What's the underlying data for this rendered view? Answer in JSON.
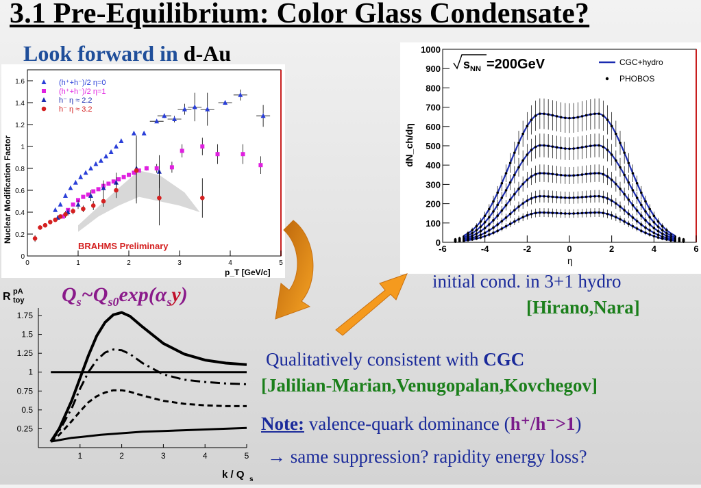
{
  "slide": {
    "title": "3.1 Pre-Equilibrium: Color Glass Condensate?",
    "subtitle_part1": "Look forward in",
    "subtitle_part2": "d-Au",
    "qs_formula": {
      "left": "Q",
      "left_sub": "s",
      "tilde": "~Q",
      "mid_sub": "s0",
      "exp": "exp(",
      "alpha": "α",
      "alpha_sub": "s",
      "y": "y",
      "close": ")"
    },
    "hydro_line1": "initial cond. in 3+1 hydro",
    "hydro_line2": "[Hirano,Nara]",
    "consistent_text": "Qualitatively consistent with",
    "consistent_bold": "CGC",
    "consistent_refs": "[Jalilian-Marian,Venugopalan,Kovchegov]",
    "note_label": "Note:",
    "note_text": "valence-quark dominance (",
    "note_ratio": "h⁺/h⁻>1",
    "note_close": ")",
    "arrow_line": "→ same suppression? rapidity energy loss?",
    "colors": {
      "title": "#000000",
      "blue": "#1a2a9a",
      "green": "#1b7f1b",
      "purple": "#7a1a8a",
      "orange_arrow": "#f59a1e"
    }
  },
  "chart_data": [
    {
      "id": "brahms",
      "type": "scatter",
      "ylabel": "Nuclear Modification Factor",
      "xlabel": "p_T [GeV/c]",
      "annotation": "BRAHMS Preliminary",
      "xlim": [
        0,
        5
      ],
      "ylim": [
        0,
        1.7
      ],
      "xticks": [
        "0",
        "1",
        "2",
        "3",
        "4",
        "5"
      ],
      "yticks": [
        "0",
        "0.2",
        "0.4",
        "0.6",
        "0.8",
        "1",
        "1.2",
        "1.4",
        "1.6"
      ],
      "legend": [
        "(h⁺+h⁻)/2 η=0",
        "(h⁺+h⁻)/2 η=1",
        "h⁻ η ≈ 2.2",
        "h⁻ η ≈ 3.2"
      ],
      "series": [
        {
          "name": "(h⁺+h⁻)/2 η=0",
          "color": "#2a3fd8",
          "marker": "triangle",
          "x": [
            0.55,
            0.65,
            0.75,
            0.85,
            0.95,
            1.05,
            1.15,
            1.25,
            1.35,
            1.45,
            1.55,
            1.65,
            1.75,
            1.85,
            2.1,
            2.3,
            2.55,
            2.7,
            2.9,
            3.1,
            3.3,
            3.55,
            3.9,
            4.2,
            4.65
          ],
          "y": [
            0.42,
            0.47,
            0.55,
            0.62,
            0.67,
            0.72,
            0.76,
            0.8,
            0.84,
            0.87,
            0.91,
            0.95,
            1.0,
            1.05,
            1.12,
            1.12,
            1.23,
            1.28,
            1.25,
            1.34,
            1.36,
            1.34,
            1.4,
            1.47,
            1.28
          ],
          "err": [
            0,
            0,
            0,
            0,
            0,
            0,
            0,
            0,
            0,
            0,
            0,
            0,
            0,
            0,
            0,
            0,
            0,
            0.02,
            0.03,
            0.05,
            0.13,
            0.15,
            0.02,
            0.05,
            0.1
          ]
        },
        {
          "name": "(h⁺+h⁻)/2 η=1",
          "color": "#e020e0",
          "marker": "square",
          "x": [
            0.7,
            0.8,
            0.9,
            1.0,
            1.1,
            1.2,
            1.3,
            1.4,
            1.5,
            1.6,
            1.7,
            1.8,
            1.9,
            2.0,
            2.1,
            2.2,
            2.35,
            2.55,
            2.85,
            3.05,
            3.45,
            3.75,
            4.25,
            4.6
          ],
          "y": [
            0.36,
            0.42,
            0.47,
            0.51,
            0.54,
            0.56,
            0.59,
            0.61,
            0.64,
            0.66,
            0.68,
            0.7,
            0.72,
            0.74,
            0.76,
            0.78,
            0.8,
            0.8,
            0.81,
            0.96,
            1.0,
            0.93,
            0.93,
            0.83
          ],
          "err": [
            0,
            0,
            0,
            0,
            0,
            0,
            0,
            0,
            0,
            0,
            0,
            0,
            0,
            0,
            0,
            0,
            0.02,
            0.04,
            0.05,
            0.06,
            0.08,
            0.09,
            0.09,
            0.08
          ]
        },
        {
          "name": "h⁻ η ≈ 2.2",
          "color": "#1a2bb0",
          "marker": "triangle",
          "x": [
            0.6,
            0.8,
            1.0,
            1.25,
            1.5,
            1.75,
            2.15,
            2.6
          ],
          "y": [
            0.35,
            0.4,
            0.47,
            0.55,
            0.62,
            0.67,
            0.8,
            0.77
          ],
          "err": [
            0.02,
            0.03,
            0.04,
            0.05,
            0.07,
            0.09,
            0.3,
            0.15
          ]
        },
        {
          "name": "h⁻ η ≈ 3.2",
          "color": "#d42020",
          "marker": "circle",
          "x": [
            0.15,
            0.25,
            0.35,
            0.45,
            0.55,
            0.65,
            0.75,
            0.9,
            1.1,
            1.3,
            1.5,
            1.75,
            2.15,
            2.6,
            3.45
          ],
          "y": [
            0.16,
            0.26,
            0.28,
            0.31,
            0.33,
            0.36,
            0.38,
            0.41,
            0.43,
            0.46,
            0.5,
            0.6,
            0.78,
            0.53,
            0.53
          ],
          "err": [
            0.03,
            0.02,
            0.02,
            0.02,
            0.02,
            0.02,
            0.03,
            0.03,
            0.03,
            0.04,
            0.05,
            0.07,
            0.3,
            0.25,
            0.18
          ]
        }
      ]
    },
    {
      "id": "toy",
      "type": "line",
      "ylabel": "R",
      "ylabel_sup": "pA",
      "ylabel_sub": "toy",
      "xlabel": "k / Q",
      "xlabel_sub": "s",
      "xlim": [
        0,
        5
      ],
      "ylim": [
        0,
        1.85
      ],
      "xticks": [
        "1",
        "2",
        "3",
        "4",
        "5"
      ],
      "yticks": [
        "0.25",
        "0.5",
        "0.75",
        "1",
        "1.25",
        "1.5",
        "1.75"
      ],
      "series": [
        {
          "style": "solid-thick",
          "x": [
            0.3,
            0.5,
            0.8,
            1.0,
            1.2,
            1.4,
            1.6,
            1.8,
            2.0,
            2.2,
            2.5,
            3.0,
            3.5,
            4.0,
            4.5,
            5.0
          ],
          "y": [
            0.08,
            0.25,
            0.62,
            0.92,
            1.22,
            1.48,
            1.66,
            1.76,
            1.79,
            1.74,
            1.6,
            1.38,
            1.24,
            1.16,
            1.12,
            1.1
          ]
        },
        {
          "style": "dash-dot",
          "x": [
            0.3,
            0.5,
            0.8,
            1.0,
            1.2,
            1.4,
            1.6,
            1.8,
            2.0,
            2.2,
            2.5,
            3.0,
            3.5,
            4.0,
            4.5,
            5.0
          ],
          "y": [
            0.08,
            0.22,
            0.52,
            0.78,
            1.0,
            1.16,
            1.26,
            1.3,
            1.29,
            1.24,
            1.12,
            0.97,
            0.9,
            0.87,
            0.85,
            0.84
          ]
        },
        {
          "style": "dashed",
          "x": [
            0.3,
            0.5,
            0.8,
            1.0,
            1.2,
            1.4,
            1.6,
            1.8,
            2.0,
            2.2,
            2.5,
            3.0,
            3.5,
            4.0,
            4.5,
            5.0
          ],
          "y": [
            0.08,
            0.17,
            0.35,
            0.48,
            0.6,
            0.68,
            0.73,
            0.76,
            0.76,
            0.74,
            0.69,
            0.62,
            0.58,
            0.56,
            0.55,
            0.55
          ]
        },
        {
          "style": "solid-lower",
          "x": [
            0.3,
            0.5,
            0.8,
            1.0,
            1.5,
            2.0,
            2.5,
            3.0,
            3.5,
            4.0,
            4.5,
            5.0
          ],
          "y": [
            0.08,
            0.1,
            0.13,
            0.14,
            0.17,
            0.19,
            0.21,
            0.22,
            0.23,
            0.24,
            0.25,
            0.26
          ]
        },
        {
          "style": "unity",
          "x": [
            0.3,
            5.0
          ],
          "y": [
            1.0,
            1.0
          ]
        }
      ]
    },
    {
      "id": "phobos",
      "type": "scatter",
      "ylabel": "dN_ch/dη",
      "xlabel": "η",
      "energy_label": "=200GeV",
      "xlim": [
        -6,
        6
      ],
      "ylim": [
        0,
        1000
      ],
      "xticks": [
        "-6",
        "-4",
        "-2",
        "0",
        "2",
        "4",
        "6"
      ],
      "yticks": [
        "0",
        "100",
        "200",
        "300",
        "400",
        "500",
        "600",
        "700",
        "800",
        "900",
        "1000"
      ],
      "legend": [
        "CGC+hydro",
        "PHOBOS"
      ],
      "centralities": [
        {
          "peak": 670,
          "mid": 645,
          "edge": 145
        },
        {
          "peak": 505,
          "mid": 485,
          "edge": 110
        },
        {
          "peak": 360,
          "mid": 345,
          "edge": 80
        },
        {
          "peak": 240,
          "mid": 230,
          "edge": 55
        },
        {
          "peak": 155,
          "mid": 150,
          "edge": 40
        }
      ]
    }
  ]
}
